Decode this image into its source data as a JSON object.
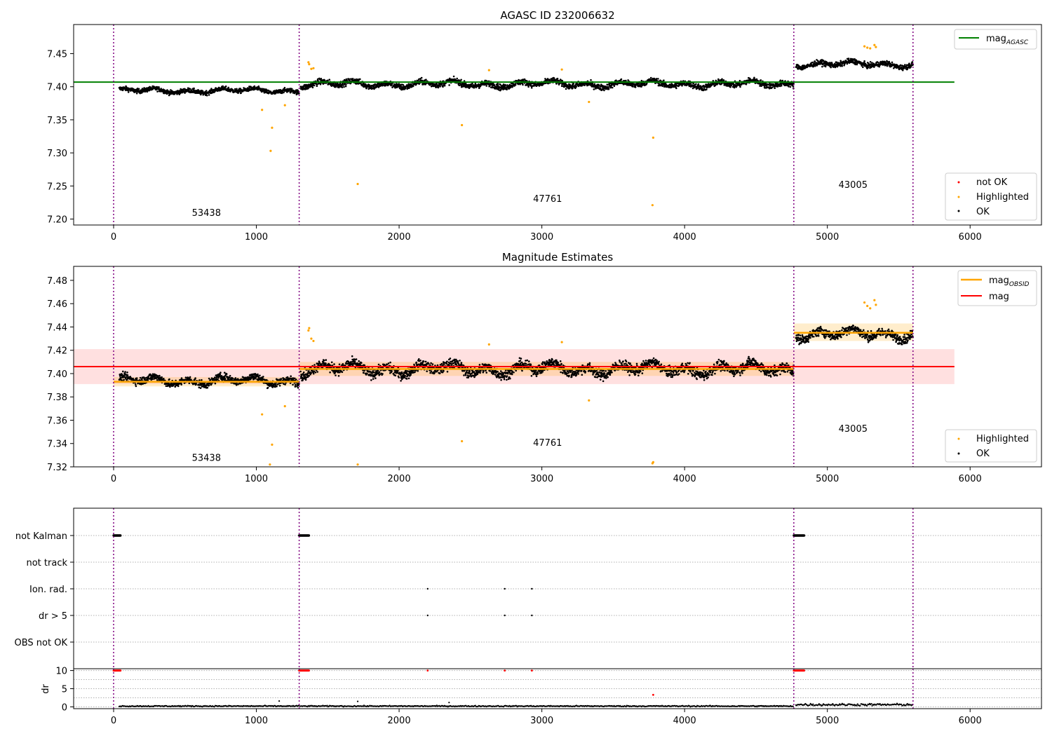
{
  "colors": {
    "ok": "#000000",
    "highlighted": "#ffa500",
    "not_ok": "#ff0000",
    "mag_agasc": "#008000",
    "mag_obsid": "#ffa500",
    "mag": "#ff0000",
    "obsid_boundary": "#800080",
    "grid": "#b0b0b0"
  },
  "chart_data": [
    {
      "type": "scatter",
      "title": "AGASC ID 232006632",
      "xlabel": "",
      "ylabel": "",
      "xlim": [
        -280,
        6500
      ],
      "ylim": [
        7.191,
        7.494
      ],
      "xticks": [
        0,
        1000,
        2000,
        3000,
        4000,
        5000,
        6000
      ],
      "yticks": [
        7.2,
        7.25,
        7.3,
        7.35,
        7.4,
        7.45
      ],
      "grid": false,
      "legend_upper": {
        "placement": "top-right",
        "entries": [
          "mag_AGASC"
        ]
      },
      "legend_lower": {
        "placement": "bottom-right",
        "entries": [
          "not OK",
          "Highlighted",
          "OK"
        ]
      },
      "obsid_boundaries": [
        0,
        1300,
        4765,
        5600
      ],
      "obsid_labels": [
        {
          "text": "53438",
          "x": 650,
          "y": 7.205
        },
        {
          "text": "47761",
          "x": 3040,
          "y": 7.226
        },
        {
          "text": "43005",
          "x": 5180,
          "y": 7.247
        }
      ],
      "horizontal_lines": [
        {
          "series": "mag_AGASC",
          "y": 7.407,
          "x": [
            -280,
            5890
          ]
        }
      ],
      "series": [
        {
          "name": "OK",
          "segments": [
            {
              "x": [
                40,
                1300
              ],
              "mean": 7.394,
              "spread": 0.006
            },
            {
              "x": [
                1310,
                4765
              ],
              "mean": 7.404,
              "spread": 0.008
            },
            {
              "x": [
                4780,
                5600
              ],
              "mean": 7.434,
              "spread": 0.007
            }
          ]
        },
        {
          "name": "Highlighted",
          "points": [
            [
              1040,
              7.365
            ],
            [
              1100,
              7.303
            ],
            [
              1110,
              7.338
            ],
            [
              1200,
              7.372
            ],
            [
              1365,
              7.437
            ],
            [
              1370,
              7.434
            ],
            [
              1385,
              7.427
            ],
            [
              1400,
              7.428
            ],
            [
              1710,
              7.253
            ],
            [
              2440,
              7.342
            ],
            [
              2630,
              7.425
            ],
            [
              3140,
              7.426
            ],
            [
              3330,
              7.377
            ],
            [
              3780,
              7.323
            ],
            [
              3775,
              7.221
            ],
            [
              5260,
              7.461
            ],
            [
              5280,
              7.459
            ],
            [
              5300,
              7.458
            ],
            [
              5330,
              7.463
            ],
            [
              5340,
              7.46
            ]
          ]
        },
        {
          "name": "not OK",
          "points": []
        }
      ]
    },
    {
      "type": "scatter",
      "title": "Magnitude Estimates",
      "xlabel": "",
      "ylabel": "",
      "xlim": [
        -280,
        6500
      ],
      "ylim": [
        7.32,
        7.492
      ],
      "xticks": [
        0,
        1000,
        2000,
        3000,
        4000,
        5000,
        6000
      ],
      "yticks": [
        7.32,
        7.34,
        7.36,
        7.38,
        7.4,
        7.42,
        7.44,
        7.46,
        7.48
      ],
      "grid": false,
      "legend_upper": {
        "placement": "top-right",
        "entries": [
          "mag_OBSID",
          "mag"
        ]
      },
      "legend_lower": {
        "placement": "bottom-right",
        "entries": [
          "Highlighted",
          "OK"
        ]
      },
      "obsid_boundaries": [
        0,
        1300,
        4765,
        5600
      ],
      "obsid_labels": [
        {
          "text": "53438",
          "x": 650,
          "y": 7.325
        },
        {
          "text": "47761",
          "x": 3040,
          "y": 7.338
        },
        {
          "text": "43005",
          "x": 5180,
          "y": 7.35
        }
      ],
      "bands": [
        {
          "series": "mag",
          "y": [
            7.391,
            7.421
          ],
          "x": [
            -280,
            5890
          ]
        },
        {
          "series": "mag_OBSID",
          "y": [
            7.389,
            7.397
          ],
          "x": [
            0,
            1300
          ]
        },
        {
          "series": "mag_OBSID",
          "y": [
            7.398,
            7.41
          ],
          "x": [
            1300,
            4765
          ]
        },
        {
          "series": "mag_OBSID",
          "y": [
            7.428,
            7.443
          ],
          "x": [
            4765,
            5600
          ]
        }
      ],
      "horizontal_lines": [
        {
          "series": "mag",
          "y": 7.406,
          "x": [
            -280,
            5890
          ]
        },
        {
          "series": "mag_OBSID",
          "y": 7.393,
          "x": [
            0,
            1300
          ]
        },
        {
          "series": "mag_OBSID",
          "y": 7.404,
          "x": [
            1300,
            4765
          ]
        },
        {
          "series": "mag_OBSID",
          "y": 7.435,
          "x": [
            4765,
            5600
          ]
        }
      ],
      "series": [
        {
          "name": "OK",
          "segments": [
            {
              "x": [
                40,
                1300
              ],
              "mean": 7.394,
              "spread": 0.006
            },
            {
              "x": [
                1310,
                4765
              ],
              "mean": 7.404,
              "spread": 0.008
            },
            {
              "x": [
                4780,
                5600
              ],
              "mean": 7.434,
              "spread": 0.007
            }
          ]
        },
        {
          "name": "Highlighted",
          "points": [
            [
              1040,
              7.365
            ],
            [
              1110,
              7.339
            ],
            [
              1200,
              7.372
            ],
            [
              1095,
              7.322
            ],
            [
              1365,
              7.437
            ],
            [
              1370,
              7.439
            ],
            [
              1385,
              7.43
            ],
            [
              1400,
              7.428
            ],
            [
              1710,
              7.322
            ],
            [
              2440,
              7.342
            ],
            [
              2630,
              7.425
            ],
            [
              3140,
              7.427
            ],
            [
              3330,
              7.377
            ],
            [
              3775,
              7.323
            ],
            [
              3780,
              7.324
            ],
            [
              5260,
              7.461
            ],
            [
              5280,
              7.458
            ],
            [
              5300,
              7.456
            ],
            [
              5330,
              7.463
            ],
            [
              5340,
              7.459
            ]
          ]
        }
      ]
    },
    {
      "type": "scatter",
      "title": "",
      "xlim": [
        -280,
        6500
      ],
      "categories": [
        "not Kalman",
        "not track",
        "Ion. rad.",
        "dr > 5",
        "OBS not OK"
      ],
      "grid": true,
      "obsid_boundaries": [
        0,
        1300,
        4765,
        5600
      ],
      "flag_points": [
        {
          "category": "not Kalman",
          "ranges": [
            [
              0,
              50
            ],
            [
              1300,
              1370
            ],
            [
              4765,
              4840
            ]
          ]
        },
        {
          "category": "not track",
          "ranges": []
        },
        {
          "category": "Ion. rad.",
          "points": [
            2200,
            2740,
            2930
          ]
        },
        {
          "category": "dr > 5",
          "points": [
            2200,
            2740,
            2930
          ]
        },
        {
          "category": "OBS not OK",
          "points": []
        }
      ]
    },
    {
      "type": "scatter",
      "title": "",
      "xlabel": "",
      "ylabel": "dr",
      "xlim": [
        -280,
        6500
      ],
      "ylim": [
        -0.5,
        10.5
      ],
      "xticks": [
        0,
        1000,
        2000,
        3000,
        4000,
        5000,
        6000
      ],
      "yticks": [
        0,
        5,
        10
      ],
      "grid": true,
      "obsid_boundaries": [
        0,
        1300,
        4765,
        5600
      ],
      "series": [
        {
          "name": "OK",
          "segments": [
            {
              "x": [
                40,
                1300
              ],
              "mean": 0.2,
              "spread": 0.15
            },
            {
              "x": [
                1310,
                4765
              ],
              "mean": 0.2,
              "spread": 0.15
            },
            {
              "x": [
                4780,
                5600
              ],
              "mean": 0.6,
              "spread": 0.3
            }
          ],
          "extra_points": [
            [
              1160,
              1.6
            ],
            [
              1710,
              1.5
            ],
            [
              2350,
              1.2
            ]
          ]
        },
        {
          "name": "not OK",
          "points_at_cap": [
            [
              0,
              50
            ],
            [
              1300,
              1370
            ],
            [
              4765,
              4840
            ]
          ],
          "single_points": [
            [
              2200,
              10
            ],
            [
              2740,
              10
            ],
            [
              2930,
              10
            ],
            [
              3780,
              3.3
            ]
          ]
        }
      ]
    }
  ]
}
